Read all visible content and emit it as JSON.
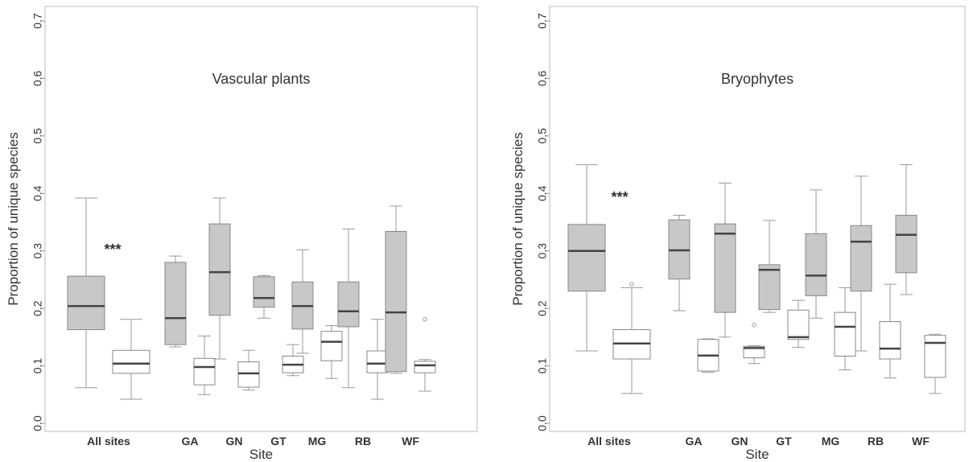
{
  "chart_data": [
    {
      "type": "boxplot",
      "title": "Vascular plants",
      "xlabel": "Site",
      "ylabel": "Proportion of unique species",
      "ylim": [
        0,
        0.7
      ],
      "yticks": [
        "0.0",
        "0.1",
        "0.2",
        "0.3",
        "0.4",
        "0.5",
        "0.6",
        "0.7"
      ],
      "categories": [
        "All sites",
        "GA",
        "GN",
        "GT",
        "MG",
        "RB",
        "WF"
      ],
      "annotation": "***",
      "colors": {
        "grey_box": "#c8c8c8",
        "white_box": "#ffffff",
        "median": "#444444"
      },
      "boxes": [
        {
          "group": "All sites",
          "fill": "grey",
          "whisker_low": 0.062,
          "q1": 0.163,
          "median": 0.204,
          "q3": 0.256,
          "whisker_high": 0.392,
          "outliers": []
        },
        {
          "group": "All sites",
          "fill": "white",
          "whisker_low": 0.042,
          "q1": 0.087,
          "median": 0.104,
          "q3": 0.127,
          "whisker_high": 0.181,
          "outliers": []
        },
        {
          "group": "GA",
          "fill": "grey",
          "whisker_low": 0.133,
          "q1": 0.137,
          "median": 0.183,
          "q3": 0.28,
          "whisker_high": 0.291,
          "outliers": []
        },
        {
          "group": "GA",
          "fill": "white",
          "whisker_low": 0.05,
          "q1": 0.067,
          "median": 0.098,
          "q3": 0.113,
          "whisker_high": 0.152,
          "outliers": []
        },
        {
          "group": "GN",
          "fill": "grey",
          "whisker_low": 0.112,
          "q1": 0.188,
          "median": 0.263,
          "q3": 0.347,
          "whisker_high": 0.392,
          "outliers": []
        },
        {
          "group": "GN",
          "fill": "white",
          "whisker_low": 0.058,
          "q1": 0.063,
          "median": 0.087,
          "q3": 0.107,
          "whisker_high": 0.127,
          "outliers": []
        },
        {
          "group": "GT",
          "fill": "grey",
          "whisker_low": 0.183,
          "q1": 0.202,
          "median": 0.218,
          "q3": 0.255,
          "whisker_high": 0.257,
          "outliers": []
        },
        {
          "group": "GT",
          "fill": "white",
          "whisker_low": 0.083,
          "q1": 0.088,
          "median": 0.102,
          "q3": 0.117,
          "whisker_high": 0.137,
          "outliers": []
        },
        {
          "group": "MG",
          "fill": "grey",
          "whisker_low": 0.122,
          "q1": 0.164,
          "median": 0.204,
          "q3": 0.246,
          "whisker_high": 0.302,
          "outliers": []
        },
        {
          "group": "MG",
          "fill": "white",
          "whisker_low": 0.078,
          "q1": 0.109,
          "median": 0.142,
          "q3": 0.16,
          "whisker_high": 0.17,
          "outliers": []
        },
        {
          "group": "RB",
          "fill": "grey",
          "whisker_low": 0.062,
          "q1": 0.168,
          "median": 0.195,
          "q3": 0.246,
          "whisker_high": 0.338,
          "outliers": []
        },
        {
          "group": "RB",
          "fill": "white",
          "whisker_low": 0.042,
          "q1": 0.088,
          "median": 0.104,
          "q3": 0.126,
          "whisker_high": 0.181,
          "outliers": []
        },
        {
          "group": "WF",
          "fill": "grey",
          "whisker_low": 0.087,
          "q1": 0.09,
          "median": 0.193,
          "q3": 0.334,
          "whisker_high": 0.378,
          "outliers": []
        },
        {
          "group": "WF",
          "fill": "white",
          "whisker_low": 0.056,
          "q1": 0.088,
          "median": 0.101,
          "q3": 0.108,
          "whisker_high": 0.111,
          "outliers": [
            0.181
          ]
        }
      ]
    },
    {
      "type": "boxplot",
      "title": "Bryophytes",
      "xlabel": "Site",
      "ylabel": "Proportion of unique species",
      "ylim": [
        0,
        0.7
      ],
      "yticks": [
        "0.0",
        "0.1",
        "0.2",
        "0.3",
        "0.4",
        "0.5",
        "0.6",
        "0.7"
      ],
      "categories": [
        "All sites",
        "GA",
        "GN",
        "GT",
        "MG",
        "RB",
        "WF"
      ],
      "annotation": "***",
      "colors": {
        "grey_box": "#c8c8c8",
        "white_box": "#ffffff",
        "median": "#444444"
      },
      "boxes": [
        {
          "group": "All sites",
          "fill": "grey",
          "whisker_low": 0.126,
          "q1": 0.23,
          "median": 0.3,
          "q3": 0.346,
          "whisker_high": 0.45,
          "outliers": []
        },
        {
          "group": "All sites",
          "fill": "white",
          "whisker_low": 0.052,
          "q1": 0.112,
          "median": 0.139,
          "q3": 0.163,
          "whisker_high": 0.236,
          "outliers": [
            0.242
          ]
        },
        {
          "group": "GA",
          "fill": "grey",
          "whisker_low": 0.196,
          "q1": 0.251,
          "median": 0.301,
          "q3": 0.354,
          "whisker_high": 0.362,
          "outliers": []
        },
        {
          "group": "GA",
          "fill": "white",
          "whisker_low": 0.089,
          "q1": 0.091,
          "median": 0.118,
          "q3": 0.146,
          "whisker_high": 0.147,
          "outliers": []
        },
        {
          "group": "GN",
          "fill": "grey",
          "whisker_low": 0.15,
          "q1": 0.193,
          "median": 0.33,
          "q3": 0.347,
          "whisker_high": 0.418,
          "outliers": []
        },
        {
          "group": "GN",
          "fill": "white",
          "whisker_low": 0.104,
          "q1": 0.114,
          "median": 0.131,
          "q3": 0.134,
          "whisker_high": 0.135,
          "outliers": [
            0.171
          ]
        },
        {
          "group": "GT",
          "fill": "grey",
          "whisker_low": 0.193,
          "q1": 0.198,
          "median": 0.267,
          "q3": 0.276,
          "whisker_high": 0.353,
          "outliers": []
        },
        {
          "group": "GT",
          "fill": "white",
          "whisker_low": 0.132,
          "q1": 0.146,
          "median": 0.15,
          "q3": 0.197,
          "whisker_high": 0.214,
          "outliers": []
        },
        {
          "group": "MG",
          "fill": "grey",
          "whisker_low": 0.183,
          "q1": 0.222,
          "median": 0.257,
          "q3": 0.33,
          "whisker_high": 0.406,
          "outliers": []
        },
        {
          "group": "MG",
          "fill": "white",
          "whisker_low": 0.093,
          "q1": 0.117,
          "median": 0.168,
          "q3": 0.193,
          "whisker_high": 0.236,
          "outliers": []
        },
        {
          "group": "RB",
          "fill": "grey",
          "whisker_low": 0.126,
          "q1": 0.23,
          "median": 0.316,
          "q3": 0.344,
          "whisker_high": 0.43,
          "outliers": []
        },
        {
          "group": "RB",
          "fill": "white",
          "whisker_low": 0.079,
          "q1": 0.112,
          "median": 0.13,
          "q3": 0.177,
          "whisker_high": 0.242,
          "outliers": []
        },
        {
          "group": "WF",
          "fill": "grey",
          "whisker_low": 0.224,
          "q1": 0.262,
          "median": 0.328,
          "q3": 0.362,
          "whisker_high": 0.45,
          "outliers": []
        },
        {
          "group": "WF",
          "fill": "white",
          "whisker_low": 0.052,
          "q1": 0.08,
          "median": 0.14,
          "q3": 0.153,
          "whisker_high": 0.155,
          "outliers": []
        }
      ]
    }
  ]
}
